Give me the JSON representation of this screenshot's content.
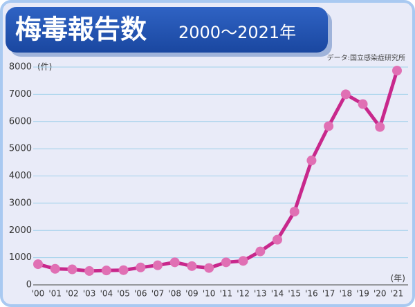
{
  "chart_data": {
    "type": "line",
    "title": "梅毒報告数",
    "subtitle": "2000～2021年",
    "source": "データ:国立感染症研究所",
    "y_unit": "(件)",
    "x_unit": "(年)",
    "categories": [
      "'00",
      "'01",
      "'02",
      "'03",
      "'04",
      "'05",
      "'06",
      "'07",
      "'08",
      "'09",
      "'10",
      "'11",
      "'12",
      "'13",
      "'14",
      "'15",
      "'16",
      "'17",
      "'18",
      "'19",
      "'20",
      "'21"
    ],
    "values": [
      760,
      590,
      570,
      510,
      530,
      540,
      640,
      720,
      830,
      690,
      620,
      830,
      880,
      1230,
      1660,
      2690,
      4570,
      5830,
      7000,
      6640,
      5800,
      7870
    ],
    "color": "#c8288c",
    "marker_color": "#e070b4",
    "ylim": [
      0,
      8000
    ],
    "yticks": [
      0,
      1000,
      2000,
      3000,
      4000,
      5000,
      6000,
      7000,
      8000
    ],
    "grid": true
  }
}
